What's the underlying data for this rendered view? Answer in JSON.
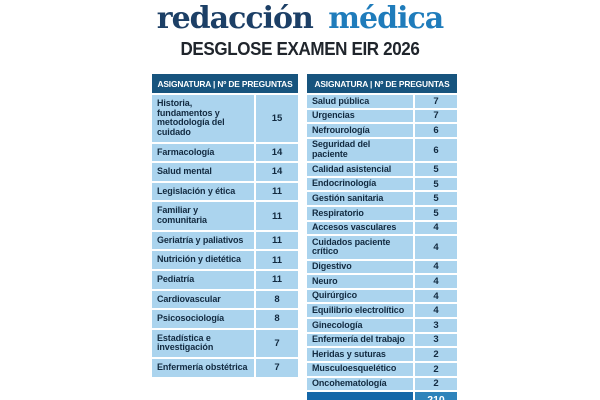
{
  "brand": {
    "logo_part1": "redacción",
    "logo_part2": "médica",
    "title": "DESGLOSE EXAMEN EIR 2026"
  },
  "colors": {
    "page-bg": "#ffffff",
    "logo-dark": "#1c3f66",
    "logo-light": "#1f7cbb",
    "title-color": "#20252c",
    "header-bg": "#17547e",
    "header-text": "#ffffff",
    "cell-bg": "#abd4ee",
    "cell-text": "#122a40",
    "total-left-bg": "#1467a8",
    "total-right-bg": "#2e83bb",
    "total-text": "#ffffff"
  },
  "chart_data": [
    {
      "type": "table",
      "title": "DESGLOSE EXAMEN EIR 2026",
      "columns": [
        "ASIGNATURA",
        "Nº DE PREGUNTAS"
      ],
      "header_label": "ASIGNATURA | Nº DE PREGUNTAS",
      "rows": [
        [
          "Historia,\nfundamentos y\nmetodología del\ncuidado",
          15
        ],
        [
          "Farmacología",
          14
        ],
        [
          "Salud mental",
          14
        ],
        [
          "Legislación y ética",
          11
        ],
        [
          "Familiar y comunitaria",
          11
        ],
        [
          "Geriatría y paliativos",
          11
        ],
        [
          "Nutrición y dietética",
          11
        ],
        [
          "Pediatría",
          11
        ],
        [
          "Cardiovascular",
          8
        ],
        [
          "Psicosociología",
          8
        ],
        [
          "Estadística e\ninvestigación",
          7
        ],
        [
          "Enfermería obstétrica",
          7
        ]
      ]
    },
    {
      "type": "table",
      "title": "DESGLOSE EXAMEN EIR 2026",
      "columns": [
        "ASIGNATURA",
        "Nº DE PREGUNTAS"
      ],
      "header_label": "ASIGNATURA | Nº DE PREGUNTAS",
      "rows": [
        [
          "Salud pública",
          7
        ],
        [
          "Urgencias",
          7
        ],
        [
          "Nefrourología",
          6
        ],
        [
          "Seguridad del\npaciente",
          6
        ],
        [
          "Calidad asistencial",
          5
        ],
        [
          "Endocrinología",
          5
        ],
        [
          "Gestión sanitaria",
          5
        ],
        [
          "Respiratorio",
          5
        ],
        [
          "Accesos vasculares",
          4
        ],
        [
          "Cuidados paciente\ncrítico",
          4
        ],
        [
          "Digestivo",
          4
        ],
        [
          "Neuro",
          4
        ],
        [
          "Quirúrgico",
          4
        ],
        [
          "Equilibrio electrolítico",
          4
        ],
        [
          "Ginecología",
          3
        ],
        [
          "Enfermería del trabajo",
          3
        ],
        [
          "Heridas y suturas",
          2
        ],
        [
          "Musculoesquelético",
          2
        ],
        [
          "Oncohematología",
          2
        ]
      ],
      "total_label": "",
      "total": 210
    }
  ]
}
